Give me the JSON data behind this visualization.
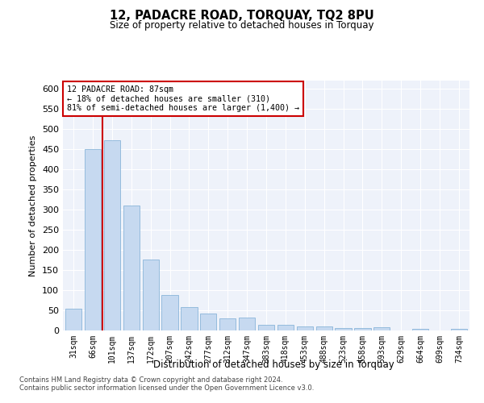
{
  "title1": "12, PADACRE ROAD, TORQUAY, TQ2 8PU",
  "title2": "Size of property relative to detached houses in Torquay",
  "xlabel": "Distribution of detached houses by size in Torquay",
  "ylabel": "Number of detached properties",
  "categories": [
    "31sqm",
    "66sqm",
    "101sqm",
    "137sqm",
    "172sqm",
    "207sqm",
    "242sqm",
    "277sqm",
    "312sqm",
    "347sqm",
    "383sqm",
    "418sqm",
    "453sqm",
    "488sqm",
    "523sqm",
    "558sqm",
    "593sqm",
    "629sqm",
    "664sqm",
    "699sqm",
    "734sqm"
  ],
  "values": [
    55,
    450,
    472,
    311,
    176,
    88,
    58,
    43,
    30,
    32,
    15,
    15,
    10,
    10,
    6,
    6,
    9,
    0,
    5,
    0,
    5
  ],
  "bar_color": "#c6d9f0",
  "bar_edge_color": "#7aabd4",
  "vline_x": 1.5,
  "vline_color": "#cc0000",
  "annotation_text": "12 PADACRE ROAD: 87sqm\n← 18% of detached houses are smaller (310)\n81% of semi-detached houses are larger (1,400) →",
  "annotation_box_color": "#ffffff",
  "annotation_box_edge": "#cc0000",
  "ylim": [
    0,
    620
  ],
  "yticks": [
    0,
    50,
    100,
    150,
    200,
    250,
    300,
    350,
    400,
    450,
    500,
    550,
    600
  ],
  "bg_color": "#eef2fa",
  "grid_color": "#ffffff",
  "footer1": "Contains HM Land Registry data © Crown copyright and database right 2024.",
  "footer2": "Contains public sector information licensed under the Open Government Licence v3.0."
}
